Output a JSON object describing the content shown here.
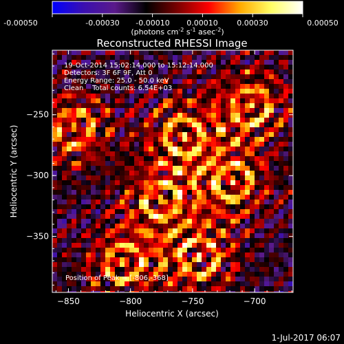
{
  "colorbar": {
    "ticks": [
      "-0.00050",
      "-0.00030",
      "-0.00010",
      "0.00010",
      "0.00030",
      "0.00050"
    ],
    "tick_values": [
      -0.0005,
      -0.0003,
      -0.0001,
      0.0001,
      0.0003,
      0.0005
    ],
    "range": [
      -0.0005,
      0.0005
    ],
    "unit_prefix": "(photons cm",
    "unit_exp1": "-2",
    "unit_mid": " s",
    "unit_exp2": "-1",
    "unit_mid2": " asec",
    "unit_exp3": "-2",
    "unit_suffix": ")",
    "colormap": [
      "#0000ff",
      "#3a0fb0",
      "#5a1a8a",
      "#000000",
      "#7a0000",
      "#ff0000",
      "#ffaa00",
      "#ffff66",
      "#ffffff"
    ]
  },
  "chart_data": {
    "type": "heatmap",
    "title": "Reconstructed RHESSI Image",
    "xlabel": "Heliocentric X (arcsec)",
    "ylabel": "Heliocentric Y (arcsec)",
    "xlim": [
      -863,
      -669
    ],
    "ylim": [
      -396,
      -197
    ],
    "x_ticks": [
      -850,
      -800,
      -750,
      -700
    ],
    "y_ticks": [
      -250,
      -300,
      -350
    ],
    "x_tick_labels": [
      "−850",
      "−800",
      "−750",
      "−700"
    ],
    "y_tick_labels": [
      "−250",
      "−300",
      "−350"
    ],
    "grid": false,
    "annotations": [
      "19-Oct-2014 15:02:14.000 to 15:12:14.000",
      "Detectors: 3F 6F 9F, Att 0",
      "Energy Range: 25.0 - 50.0 keV",
      "Clean    Total counts: 6.54E+03"
    ],
    "peak_label": "Position of Peak = [-806,-368]",
    "peak": [
      -806,
      -368
    ],
    "bright_regions": [
      {
        "x": -845,
        "y": -262
      },
      {
        "x": -703,
        "y": -243
      },
      {
        "x": -718,
        "y": -305
      },
      {
        "x": -757,
        "y": -268
      },
      {
        "x": -805,
        "y": -372
      },
      {
        "x": -775,
        "y": -320
      },
      {
        "x": -745,
        "y": -368
      }
    ]
  },
  "footer": {
    "date": "1-Jul-2017 06:07"
  }
}
